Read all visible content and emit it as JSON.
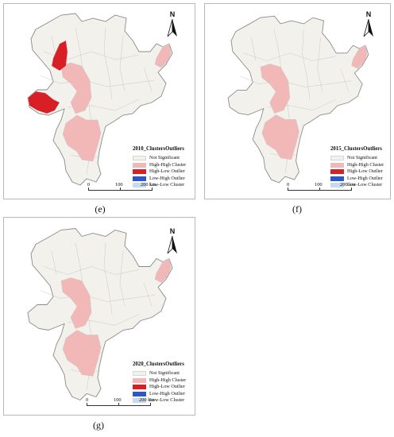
{
  "colors": {
    "not_significant": "#f2f1ec",
    "high_high_cluster": "#f2b8b8",
    "high_low_outlier": "#d91f26",
    "low_high_outlier": "#2f56c9",
    "low_low_cluster": "#c6dcec",
    "border": "#c9c9c4",
    "outline": "#8a8a8a"
  },
  "north_label": "N",
  "legend_items": [
    "Not Significant",
    "High-High Cluster",
    "High-Low Outlier",
    "Low-High Outlier",
    "Low-Low Cluster"
  ],
  "scale": {
    "labels": [
      "0",
      "100",
      "200 km"
    ]
  },
  "panels": [
    {
      "caption": "(e)",
      "legend_title": "2010_ClustersOutliers",
      "regions": {
        "hh_northeast": "high_high_cluster",
        "hh_middle": "high_high_cluster",
        "hh_south": "high_high_cluster",
        "hl_north": "high_low_outlier",
        "hl_west": "high_low_outlier"
      }
    },
    {
      "caption": "(f)",
      "legend_title": "2015_ClustersOutliers",
      "regions": {
        "hh_northeast": "high_high_cluster",
        "hh_middle": "high_high_cluster",
        "hh_south": "high_high_cluster"
      }
    },
    {
      "caption": "(g)",
      "legend_title": "2020_ClustersOutliers",
      "regions": {
        "hh_northeast": "high_high_cluster",
        "hh_middle": "high_high_cluster",
        "hh_south": "high_high_cluster"
      }
    }
  ]
}
